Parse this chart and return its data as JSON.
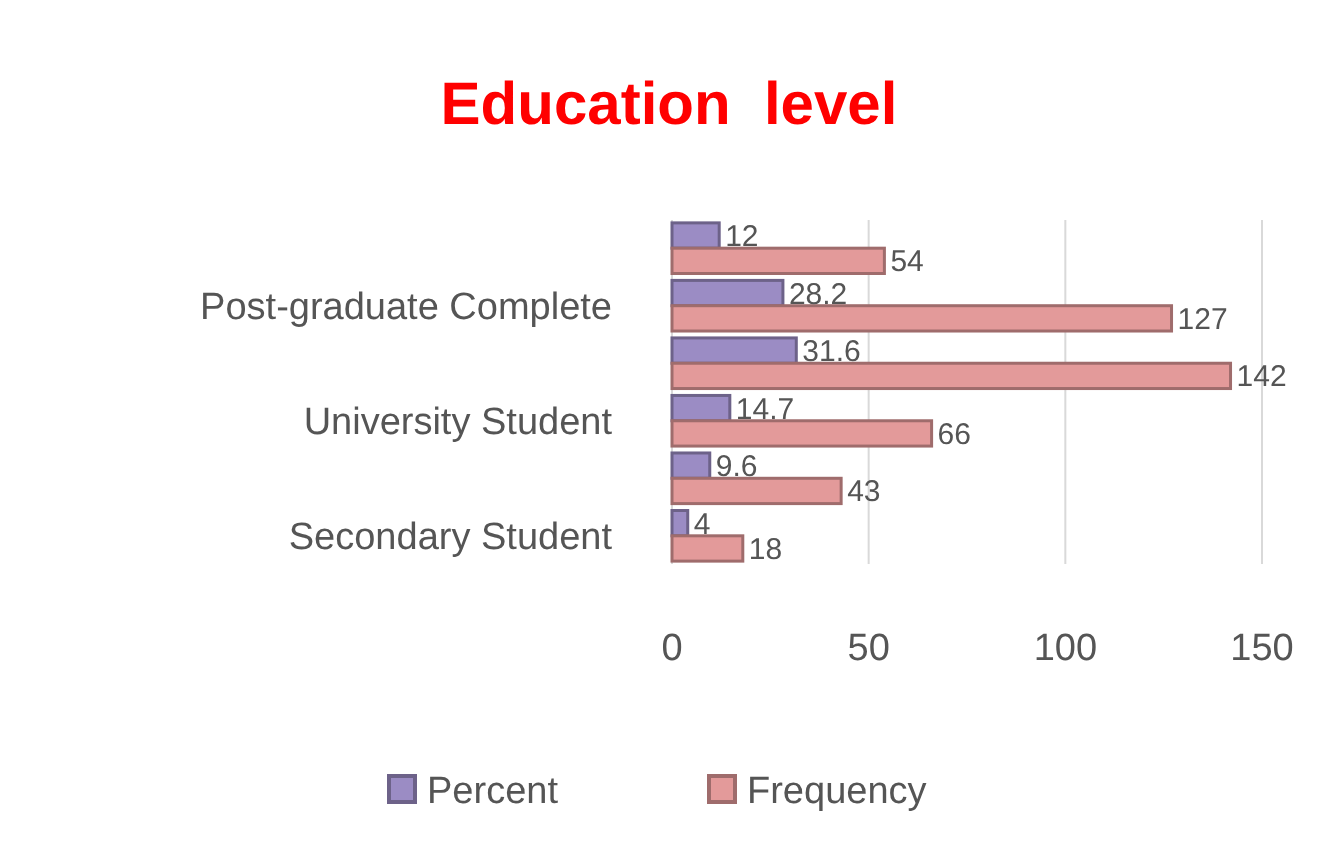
{
  "chart_data": {
    "type": "bar",
    "orientation": "horizontal",
    "title": "Education  level",
    "categories": [
      null,
      "Post-graduate Complete",
      null,
      "University Student",
      null,
      "Secondary Student"
    ],
    "series": [
      {
        "name": "Percent",
        "color": "#9b8cc4",
        "values": [
          12,
          28.2,
          31.6,
          14.7,
          9.6,
          4
        ]
      },
      {
        "name": "Frequency",
        "color": "#e39a9a",
        "values": [
          54,
          127,
          142,
          66,
          43,
          18
        ]
      }
    ],
    "xlim": [
      0,
      150
    ],
    "xticks": [
      0,
      50,
      100,
      150
    ],
    "grid": "x",
    "legend": "bottom",
    "data_labels": true
  }
}
